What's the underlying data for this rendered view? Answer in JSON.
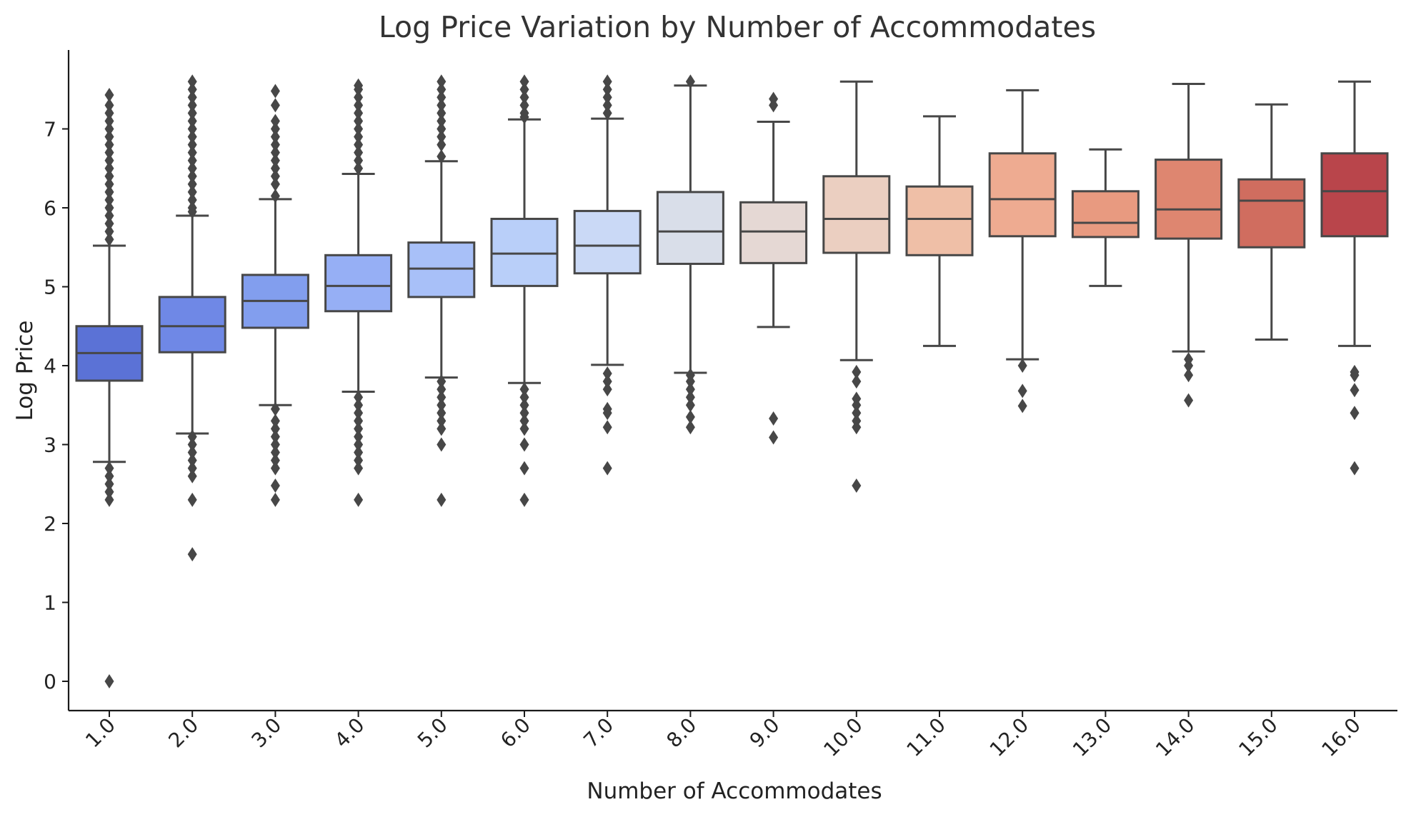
{
  "chart_data": {
    "type": "box",
    "title": "Log Price Variation by Number of Accommodates",
    "xlabel": "Number of Accommodates",
    "ylabel": "Log Price",
    "ylim": [
      -0.38,
      7.98
    ],
    "yticks": [
      0,
      1,
      2,
      3,
      4,
      5,
      6,
      7
    ],
    "grid": false,
    "legend": "none",
    "categories": [
      "1.0",
      "2.0",
      "3.0",
      "4.0",
      "5.0",
      "6.0",
      "7.0",
      "8.0",
      "9.0",
      "10.0",
      "11.0",
      "12.0",
      "13.0",
      "14.0",
      "15.0",
      "16.0"
    ],
    "boxes": [
      {
        "category": "1.0",
        "color": "#5b72d6",
        "whisker_low": 2.78,
        "q1": 3.81,
        "median": 4.16,
        "q3": 4.5,
        "whisker_high": 5.52,
        "outliers": [
          5.6,
          5.7,
          5.8,
          5.9,
          6.0,
          6.1,
          6.2,
          6.3,
          6.4,
          6.5,
          6.6,
          6.7,
          6.8,
          6.9,
          7.0,
          7.1,
          7.2,
          7.3,
          7.43,
          2.7,
          2.6,
          2.5,
          2.4,
          2.3,
          0.0
        ]
      },
      {
        "category": "2.0",
        "color": "#6f88e6",
        "whisker_low": 3.14,
        "q1": 4.17,
        "median": 4.5,
        "q3": 4.87,
        "whisker_high": 5.9,
        "outliers": [
          5.95,
          6.0,
          6.1,
          6.2,
          6.3,
          6.4,
          6.5,
          6.6,
          6.7,
          6.8,
          6.9,
          7.0,
          7.1,
          7.2,
          7.3,
          7.4,
          7.5,
          7.6,
          3.1,
          3.0,
          2.9,
          2.8,
          2.7,
          2.6,
          2.3,
          1.61
        ]
      },
      {
        "category": "3.0",
        "color": "#829eee",
        "whisker_low": 3.5,
        "q1": 4.48,
        "median": 4.82,
        "q3": 5.15,
        "whisker_high": 6.11,
        "outliers": [
          6.15,
          6.3,
          6.4,
          6.5,
          6.6,
          6.7,
          6.8,
          6.9,
          7.0,
          7.1,
          7.3,
          7.48,
          3.45,
          3.3,
          3.2,
          3.1,
          3.0,
          2.9,
          2.8,
          2.7,
          2.48,
          2.3
        ]
      },
      {
        "category": "4.0",
        "color": "#96aff5",
        "whisker_low": 3.67,
        "q1": 4.69,
        "median": 5.01,
        "q3": 5.4,
        "whisker_high": 6.43,
        "outliers": [
          6.5,
          6.6,
          6.7,
          6.8,
          6.9,
          7.0,
          7.1,
          7.2,
          7.3,
          7.4,
          7.5,
          7.55,
          3.6,
          3.5,
          3.4,
          3.3,
          3.2,
          3.1,
          3.0,
          2.9,
          2.8,
          2.7,
          2.3
        ]
      },
      {
        "category": "5.0",
        "color": "#a8c0f8",
        "whisker_low": 3.85,
        "q1": 4.87,
        "median": 5.23,
        "q3": 5.56,
        "whisker_high": 6.59,
        "outliers": [
          6.65,
          6.8,
          6.9,
          7.0,
          7.1,
          7.2,
          7.3,
          7.4,
          7.5,
          7.6,
          3.8,
          3.7,
          3.6,
          3.5,
          3.4,
          3.3,
          3.2,
          3.0,
          2.3
        ]
      },
      {
        "category": "6.0",
        "color": "#b9cff9",
        "whisker_low": 3.78,
        "q1": 5.01,
        "median": 5.42,
        "q3": 5.86,
        "whisker_high": 7.12,
        "outliers": [
          7.15,
          7.2,
          7.3,
          7.4,
          7.5,
          7.6,
          3.7,
          3.6,
          3.5,
          3.4,
          3.3,
          3.2,
          3.0,
          2.7,
          2.3
        ]
      },
      {
        "category": "7.0",
        "color": "#cad9f6",
        "whisker_low": 4.01,
        "q1": 5.17,
        "median": 5.52,
        "q3": 5.96,
        "whisker_high": 7.13,
        "outliers": [
          7.2,
          7.3,
          7.4,
          7.5,
          7.6,
          3.9,
          3.8,
          3.7,
          3.45,
          3.4,
          3.22,
          2.7
        ]
      },
      {
        "category": "8.0",
        "color": "#d9dee9",
        "whisker_low": 3.91,
        "q1": 5.29,
        "median": 5.7,
        "q3": 6.2,
        "whisker_high": 7.55,
        "outliers": [
          7.6,
          3.88,
          3.8,
          3.7,
          3.6,
          3.5,
          3.35,
          3.22
        ]
      },
      {
        "category": "9.0",
        "color": "#e5d8d4",
        "whisker_low": 4.49,
        "q1": 5.3,
        "median": 5.7,
        "q3": 6.07,
        "whisker_high": 7.09,
        "outliers": [
          7.3,
          7.38,
          3.33,
          3.09
        ]
      },
      {
        "category": "10.0",
        "color": "#ebcfc1",
        "whisker_low": 4.07,
        "q1": 5.43,
        "median": 5.86,
        "q3": 6.4,
        "whisker_high": 7.6,
        "outliers": [
          3.92,
          3.8,
          3.58,
          3.5,
          3.4,
          3.3,
          3.22,
          2.48
        ]
      },
      {
        "category": "11.0",
        "color": "#efbfa7",
        "whisker_low": 4.25,
        "q1": 5.4,
        "median": 5.86,
        "q3": 6.27,
        "whisker_high": 7.16,
        "outliers": []
      },
      {
        "category": "12.0",
        "color": "#eeab91",
        "whisker_low": 4.08,
        "q1": 5.64,
        "median": 6.11,
        "q3": 6.69,
        "whisker_high": 7.49,
        "outliers": [
          4.0,
          3.68,
          3.49
        ]
      },
      {
        "category": "13.0",
        "color": "#e89a80",
        "whisker_low": 5.01,
        "q1": 5.63,
        "median": 5.81,
        "q3": 6.21,
        "whisker_high": 6.74,
        "outliers": []
      },
      {
        "category": "14.0",
        "color": "#de8670",
        "whisker_low": 4.18,
        "q1": 5.61,
        "median": 5.98,
        "q3": 6.61,
        "whisker_high": 7.57,
        "outliers": [
          4.08,
          4.0,
          3.88,
          3.56
        ]
      },
      {
        "category": "15.0",
        "color": "#d06d5f",
        "whisker_low": 4.33,
        "q1": 5.5,
        "median": 6.09,
        "q3": 6.36,
        "whisker_high": 7.31,
        "outliers": []
      },
      {
        "category": "16.0",
        "color": "#b9454b",
        "whisker_low": 4.25,
        "q1": 5.64,
        "median": 6.21,
        "q3": 6.69,
        "whisker_high": 7.6,
        "outliers": [
          3.92,
          3.88,
          3.69,
          3.4,
          2.7
        ]
      }
    ]
  },
  "colors": {
    "line": "#474747",
    "axis": "#1a1a1a",
    "text": "#222222"
  }
}
